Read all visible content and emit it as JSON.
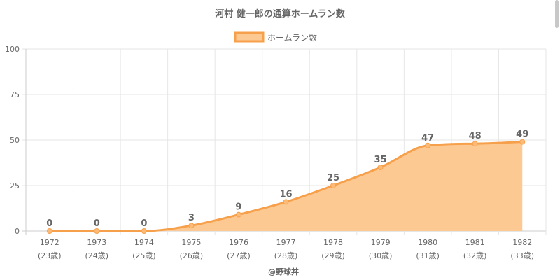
{
  "chart_data": {
    "type": "area",
    "title": "河村 健一郎の通算ホームラン数",
    "legend": {
      "label": "ホームラン数",
      "position": "top"
    },
    "categories": [
      "1972",
      "1973",
      "1974",
      "1975",
      "1976",
      "1977",
      "1978",
      "1979",
      "1980",
      "1981",
      "1982"
    ],
    "sublabels": [
      "(23歳)",
      "(24歳)",
      "(25歳)",
      "(26歳)",
      "(27歳)",
      "(28歳)",
      "(29歳)",
      "(30歳)",
      "(31歳)",
      "(32歳)",
      "(33歳)"
    ],
    "series": [
      {
        "name": "ホームラン数",
        "values": [
          0,
          0,
          0,
          3,
          9,
          16,
          25,
          35,
          47,
          48,
          49
        ]
      }
    ],
    "ylim": [
      0,
      100
    ],
    "yticks": [
      0,
      25,
      50,
      75,
      100
    ],
    "grid": true,
    "credit": "@野球丼",
    "colors": {
      "line": "#f7a04b",
      "fill": "#fdc993",
      "point": "#fdbb77",
      "text": "#666666",
      "grid": "#e6e6e6"
    }
  }
}
